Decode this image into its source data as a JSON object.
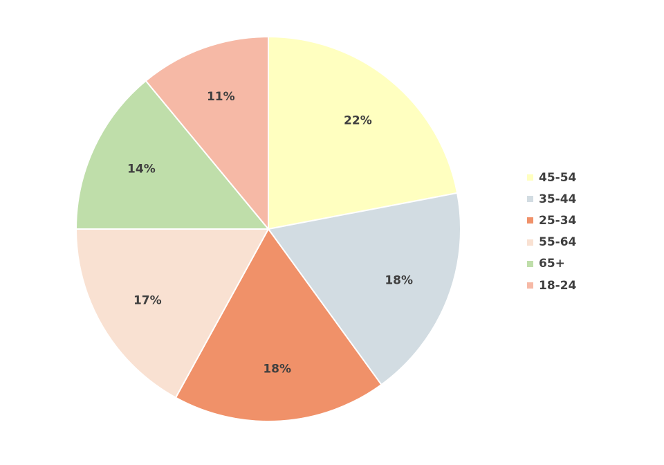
{
  "chart_data": {
    "type": "pie",
    "categories": [
      "45-54",
      "35-44",
      "25-34",
      "55-64",
      "65+",
      "18-24"
    ],
    "values": [
      22,
      18,
      18,
      17,
      14,
      11
    ],
    "value_labels": [
      "22%",
      "18%",
      "18%",
      "17%",
      "14%",
      "11%"
    ],
    "colors": [
      "#ffffc0",
      "#d2dce2",
      "#f09169",
      "#f9e1d2",
      "#bfdeaa",
      "#f6b9a6"
    ],
    "title": "",
    "start_angle": "12 o'clock",
    "direction": "clockwise",
    "legend_position": "right"
  }
}
